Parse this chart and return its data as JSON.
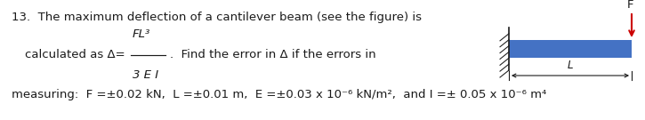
{
  "line1": "13.  The maximum deflection of a cantilever beam (see the figure) is",
  "line2a": "calculated as Δ=",
  "frac_num": "FL³",
  "frac_den": "3 E I",
  "line2b": ".  Find the error in Δ if the errors in",
  "line3": "measuring:  F =±0.02 kN,  L =±0.01 m,  E =±0.03 x 10⁻⁶ kN/m²,  and I =± 0.05 x 10⁻⁶ m⁴",
  "background": "#ffffff",
  "text_color": "#1a1a1a",
  "beam_color": "#4472c4",
  "arrow_color": "#cc0000",
  "wall_color": "#1a1a1a",
  "fig_width": 7.25,
  "fig_height": 1.35,
  "dpi": 100
}
